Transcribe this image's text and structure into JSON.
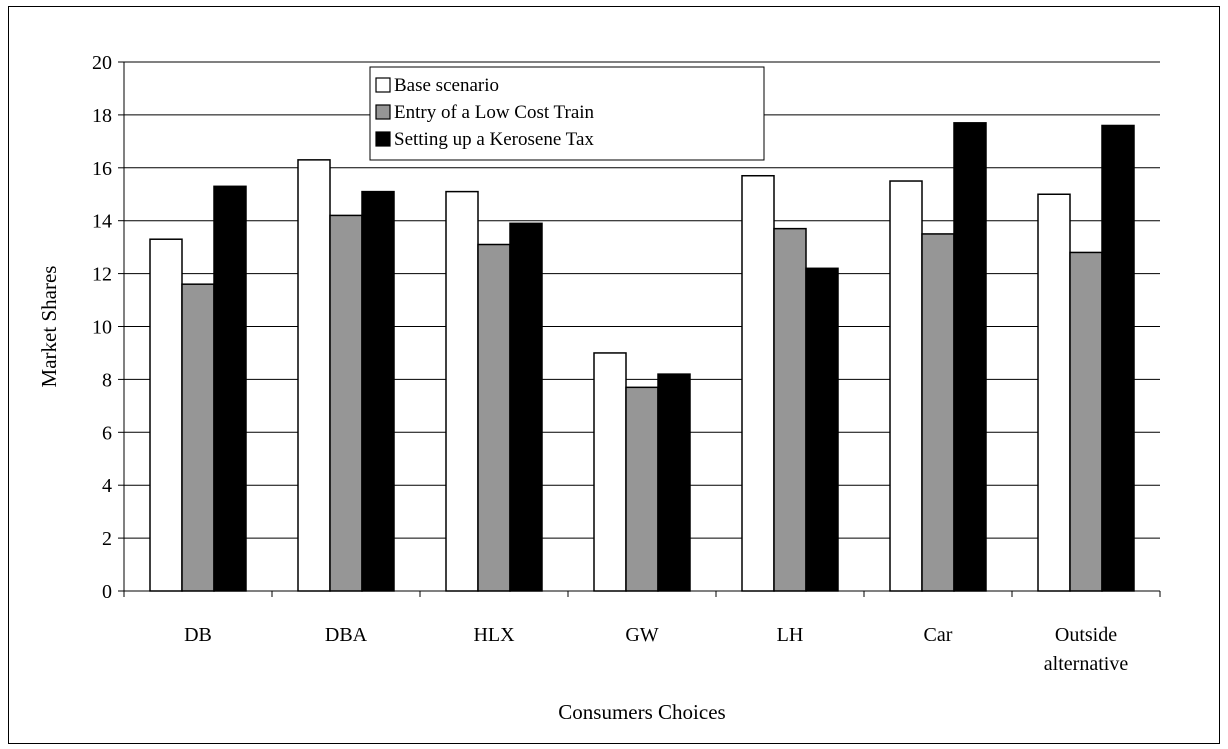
{
  "chart_data": {
    "type": "bar",
    "xlabel": "Consumers Choices",
    "ylabel": "Market Shares",
    "ylim": [
      0,
      20
    ],
    "yticks": [
      0,
      2,
      4,
      6,
      8,
      10,
      12,
      14,
      16,
      18,
      20
    ],
    "grid": "horizontal",
    "legend_position": "top-center",
    "categories": [
      "DB",
      "DBA",
      "HLX",
      "GW",
      "LH",
      "Car",
      "Outside alternative"
    ],
    "category_lines": [
      [
        "DB"
      ],
      [
        "DBA"
      ],
      [
        "HLX"
      ],
      [
        "GW"
      ],
      [
        "LH"
      ],
      [
        "Car"
      ],
      [
        "Outside",
        "alternative"
      ]
    ],
    "series": [
      {
        "name": "Base scenario",
        "color": "#ffffff",
        "values": [
          13.3,
          16.3,
          15.1,
          9.0,
          15.7,
          15.5,
          15.0
        ]
      },
      {
        "name": "Entry of a Low Cost Train",
        "color": "#969696",
        "values": [
          11.6,
          14.2,
          13.1,
          7.7,
          13.7,
          13.5,
          12.8
        ]
      },
      {
        "name": "Setting up a Kerosene Tax",
        "color": "#000000",
        "values": [
          15.3,
          15.1,
          13.9,
          8.2,
          12.2,
          17.7,
          17.6
        ]
      }
    ]
  }
}
